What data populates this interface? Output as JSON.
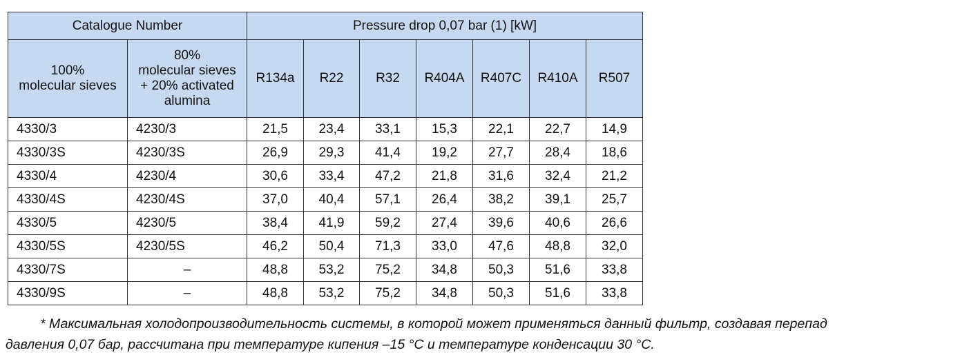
{
  "table": {
    "group_headers": [
      "Catalogue Number",
      "Pressure drop 0,07 bar (1) [kW]"
    ],
    "sub_headers": [
      "100%\nmolecular sieves",
      "80%\nmolecular sieves\n+ 20% activated\nalumina",
      "R134a",
      "R22",
      "R32",
      "R404A",
      "R407C",
      "R410A",
      "R507"
    ],
    "rows": [
      [
        "4330/3",
        "4230/3",
        "21,5",
        "23,4",
        "33,1",
        "15,3",
        "22,1",
        "22,7",
        "14,9"
      ],
      [
        "4330/3S",
        "4230/3S",
        "26,9",
        "29,3",
        "41,4",
        "19,2",
        "27,7",
        "28,4",
        "18,6"
      ],
      [
        "4330/4",
        "4230/4",
        "30,6",
        "33,4",
        "47,2",
        "21,8",
        "31,6",
        "32,4",
        "21,2"
      ],
      [
        "4330/4S",
        "4230/4S",
        "37,0",
        "40,4",
        "57,1",
        "26,4",
        "38,2",
        "39,1",
        "25,7"
      ],
      [
        "4330/5",
        "4230/5",
        "38,4",
        "41,9",
        "59,2",
        "27,4",
        "39,6",
        "40,6",
        "26,6"
      ],
      [
        "4330/5S",
        "4230/5S",
        "46,2",
        "50,4",
        "71,3",
        "33,0",
        "47,6",
        "48,8",
        "32,0"
      ],
      [
        "4330/7S",
        "–",
        "48,8",
        "53,2",
        "75,2",
        "34,8",
        "50,3",
        "51,6",
        "33,8"
      ],
      [
        "4330/9S",
        "–",
        "48,8",
        "53,2",
        "75,2",
        "34,8",
        "50,3",
        "51,6",
        "33,8"
      ]
    ]
  },
  "footnote": [
    "* Максимальная холодопроизводительность системы, в которой может применяться данный фильтр, создавая перепад",
    "давления 0,07 бар, рассчитана при температуре кипения –15 °C и температуре конденсации 30 °C."
  ]
}
